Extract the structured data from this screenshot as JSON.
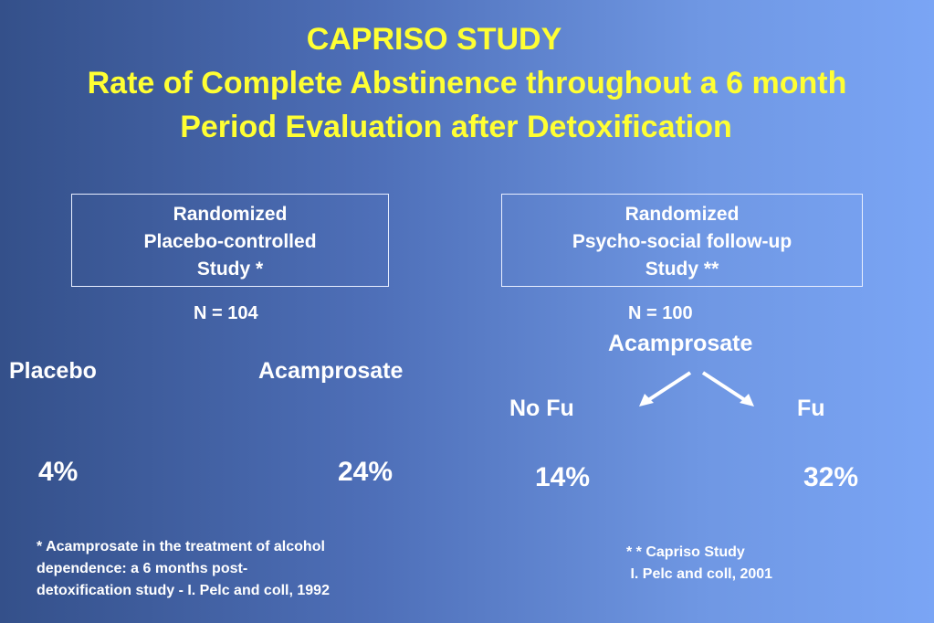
{
  "title": {
    "line1": "CAPRISO STUDY",
    "line2": "Rate of Complete Abstinence throughout a 6 month",
    "line3": "Period  Evaluation after Detoxification"
  },
  "left_study": {
    "box_lines": [
      "Randomized",
      "Placebo-controlled",
      "Study *"
    ],
    "n": "N = 104",
    "groups": [
      {
        "label": "Placebo",
        "rate": "4%"
      },
      {
        "label": "Acamprosate",
        "rate": "24%"
      }
    ],
    "footnote": [
      "* Acamprosate in the treatment of alcohol",
      "dependence: a 6 months post-",
      "detoxification study - I. Pelc and coll, 1992"
    ]
  },
  "right_study": {
    "box_lines": [
      "Randomized",
      "Psycho-social follow-up",
      "Study **"
    ],
    "n": "N = 100",
    "treatment": "Acamprosate",
    "groups": [
      {
        "label": "No Fu",
        "rate": "14%"
      },
      {
        "label": "Fu",
        "rate": "32%"
      }
    ],
    "footnote": [
      "* * Capriso Study",
      " I. Pelc and coll, 2001"
    ]
  },
  "colors": {
    "title": "#ffff33",
    "text": "#ffffff",
    "background_left": "#34508a",
    "background_right": "#7aa5f5"
  }
}
